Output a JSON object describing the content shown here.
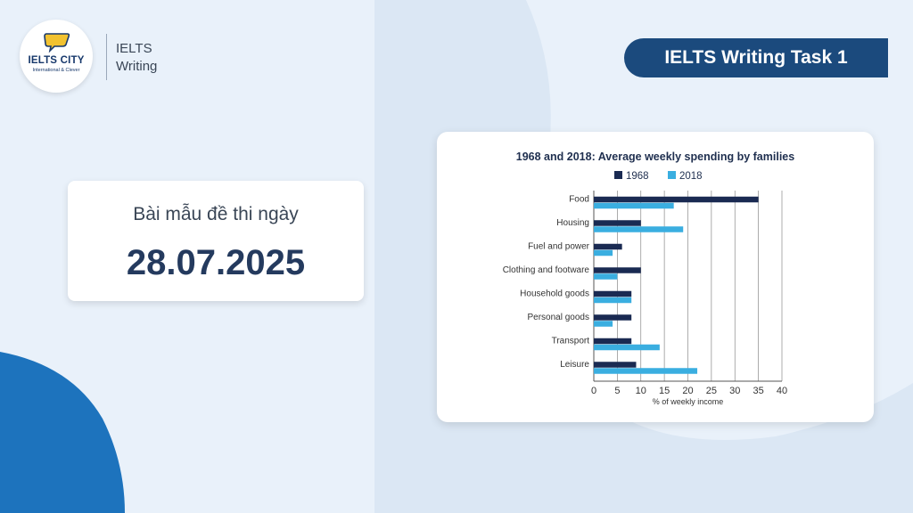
{
  "brand": {
    "logo_text": "IELTS CITY",
    "logo_tagline": "International & Clever",
    "line1": "IELTS",
    "line2": "Writing"
  },
  "task_label": "IELTS Writing Task 1",
  "exam_card": {
    "subtitle": "Bài mẫu đề thi ngày",
    "date": "28.07.2025"
  },
  "colors": {
    "series_1968": "#1a2a52",
    "series_2018": "#3aaee0",
    "accent_blue": "#1b4a7d",
    "background": "#e9f1fa"
  },
  "chart_data": {
    "type": "bar",
    "orientation": "horizontal",
    "title": "1968 and 2018: Average weekly spending by families",
    "xlabel": "% of weekly income",
    "ylabel": "",
    "categories": [
      "Food",
      "Housing",
      "Fuel and power",
      "Clothing and footware",
      "Household goods",
      "Personal goods",
      "Transport",
      "Leisure"
    ],
    "series": [
      {
        "name": "1968",
        "values": [
          35,
          10,
          6,
          10,
          8,
          8,
          8,
          9
        ]
      },
      {
        "name": "2018",
        "values": [
          17,
          19,
          4,
          5,
          8,
          4,
          14,
          22
        ]
      }
    ],
    "xlim": [
      0,
      40
    ],
    "ticks": [
      "0",
      "5",
      "10",
      "15",
      "20",
      "25",
      "30",
      "35",
      "40"
    ],
    "grid": true,
    "legend": "top"
  }
}
